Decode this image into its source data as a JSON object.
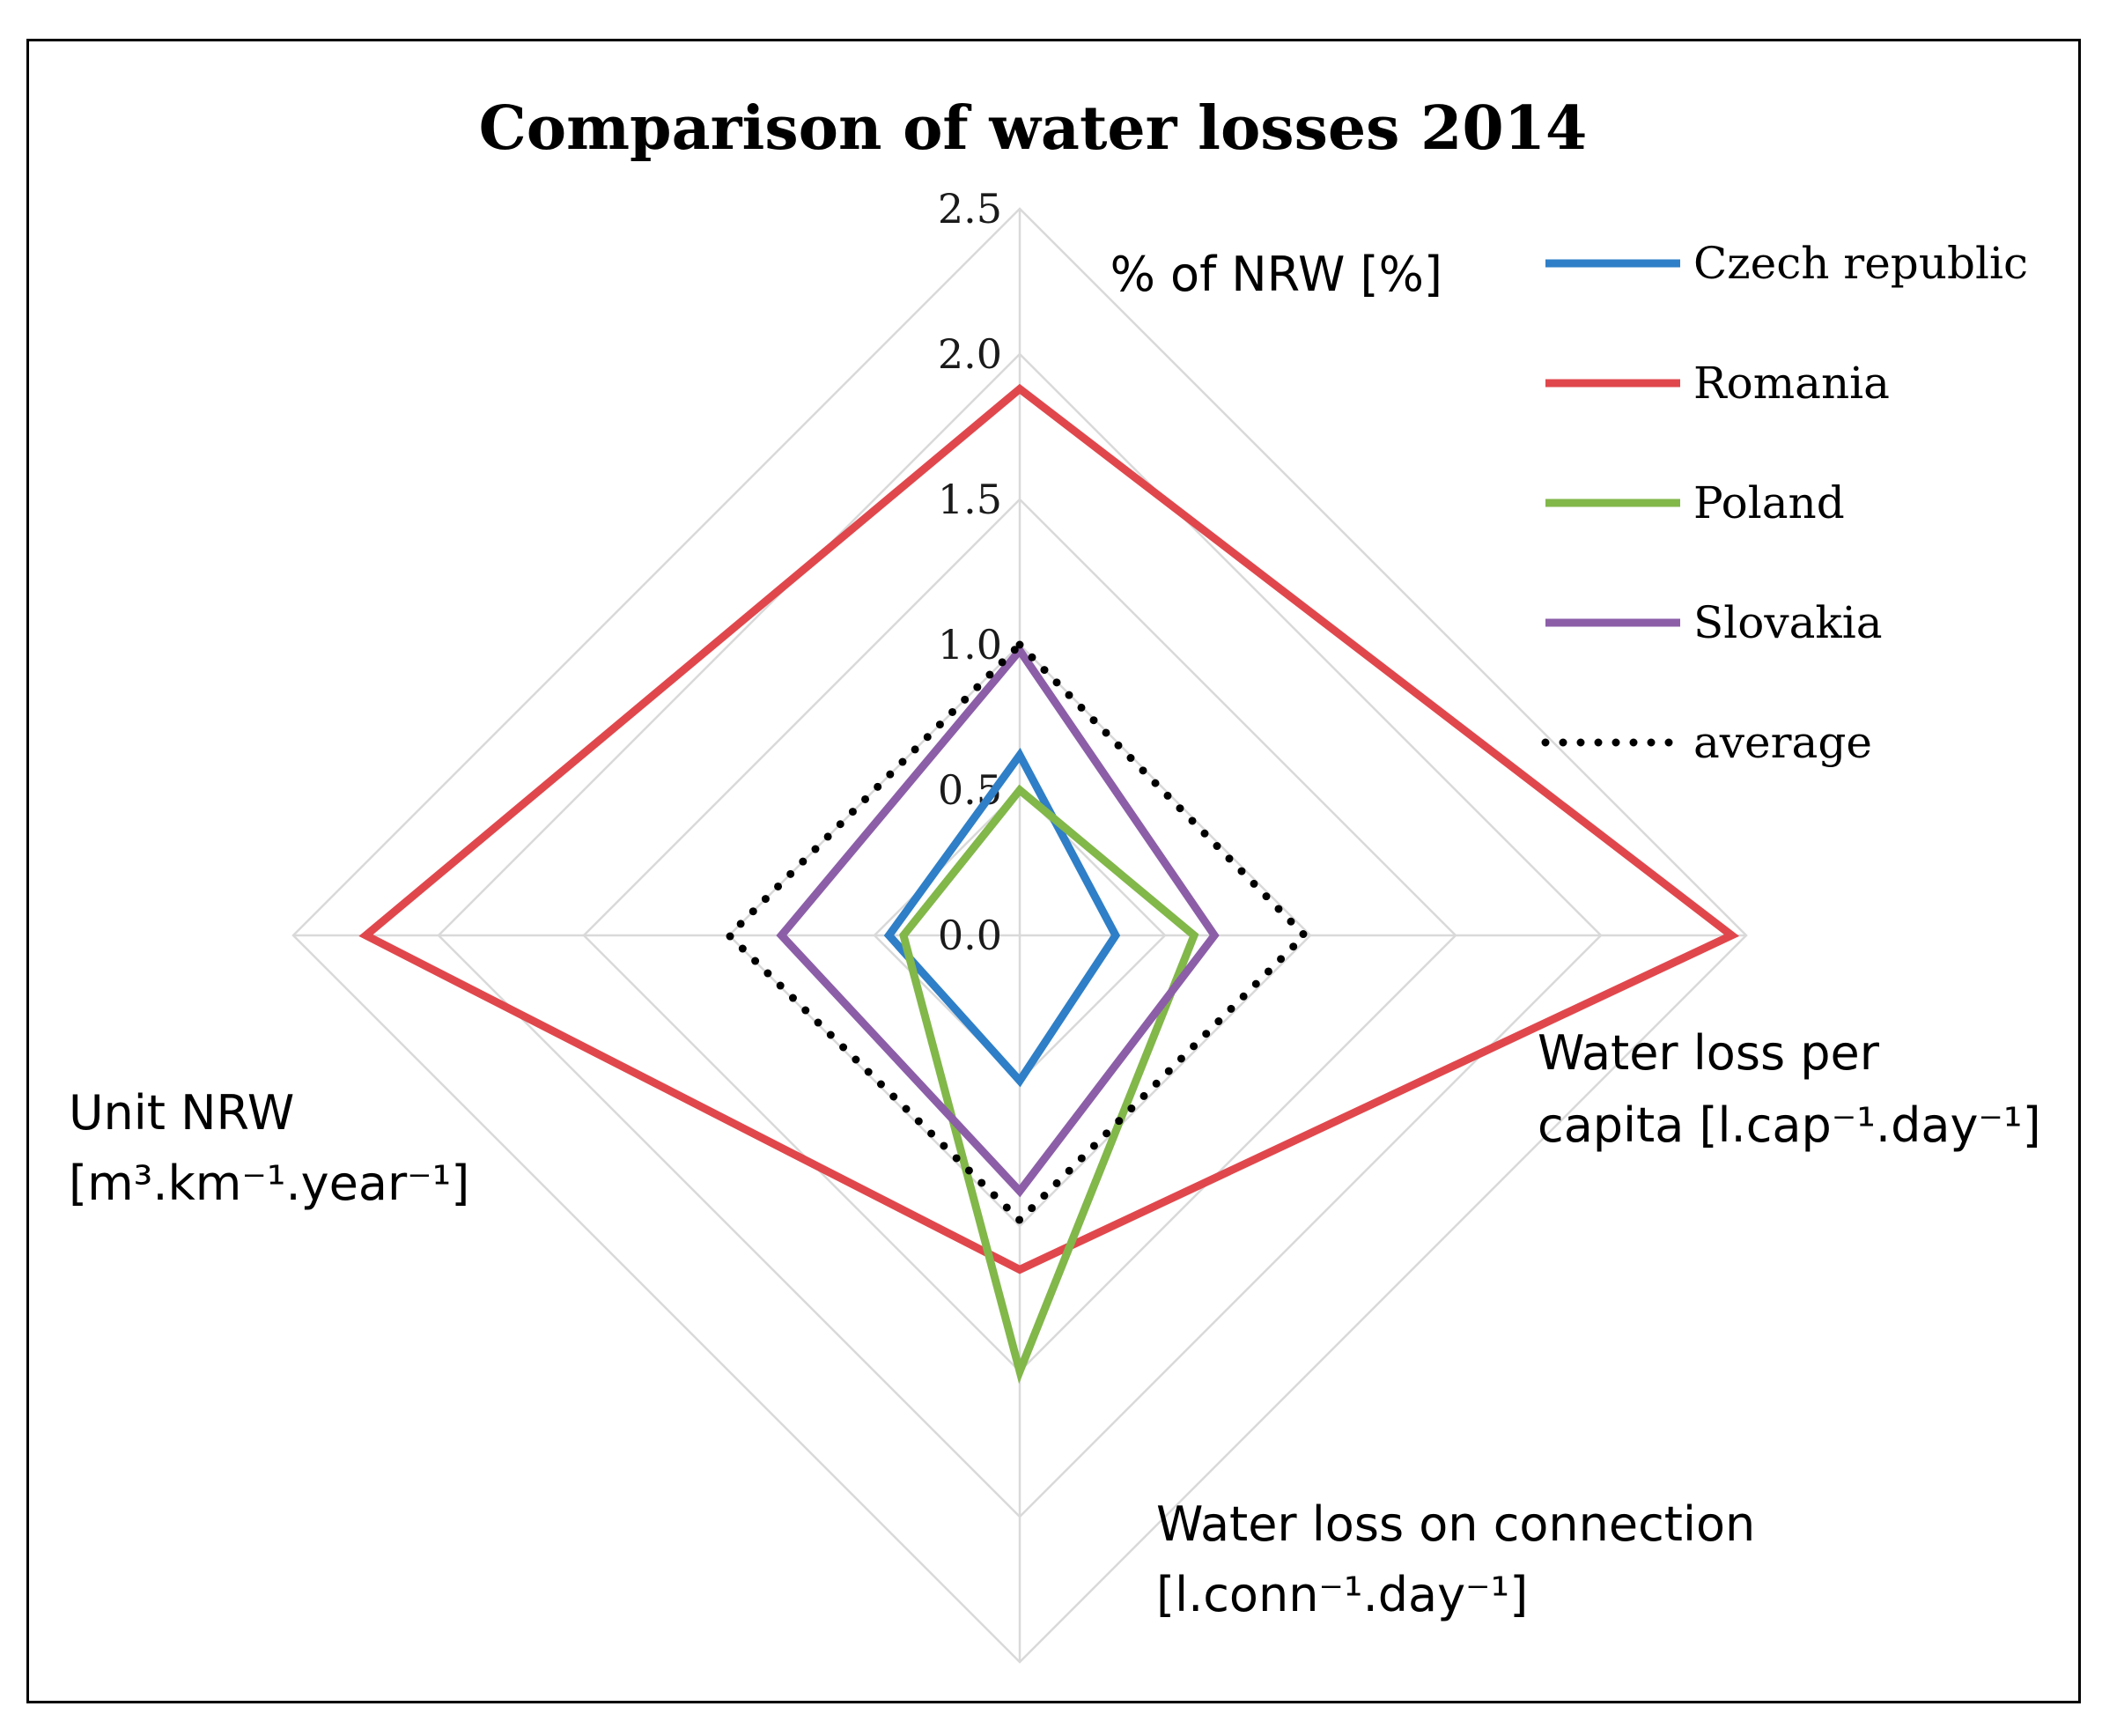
{
  "chart_data": {
    "type": "radar",
    "title": "Comparison of water losses 2014",
    "axes": [
      {
        "lines": [
          "% of NRW [%]"
        ]
      },
      {
        "lines": [
          "Water loss per",
          "capita [l.cap⁻¹.day⁻¹]"
        ]
      },
      {
        "lines": [
          "Water loss on connection",
          "[l.conn⁻¹.day⁻¹]"
        ]
      },
      {
        "lines": [
          "Unit NRW",
          "[m³.km⁻¹.year⁻¹]"
        ]
      }
    ],
    "range": [
      0,
      2.5
    ],
    "ticks": [
      "0.0",
      "0.5",
      "1.0",
      "1.5",
      "2.0",
      "2.5"
    ],
    "grid": true,
    "legend_position": "right",
    "series": [
      {
        "name": "Czech republic",
        "color": "#2e7fc7",
        "style": "solid",
        "values": [
          0.62,
          0.33,
          0.5,
          0.45
        ]
      },
      {
        "name": "Romania",
        "color": "#e0474c",
        "style": "solid",
        "values": [
          1.88,
          2.45,
          1.15,
          2.25
        ]
      },
      {
        "name": "Poland",
        "color": "#82b74a",
        "style": "solid",
        "values": [
          0.5,
          0.6,
          1.5,
          0.4
        ]
      },
      {
        "name": "Slovakia",
        "color": "#8c5ea8",
        "style": "solid",
        "values": [
          0.98,
          0.67,
          0.88,
          0.82
        ]
      },
      {
        "name": "average",
        "color": "#000000",
        "style": "dotted",
        "values": [
          1.0,
          0.98,
          0.98,
          1.0
        ]
      }
    ]
  }
}
